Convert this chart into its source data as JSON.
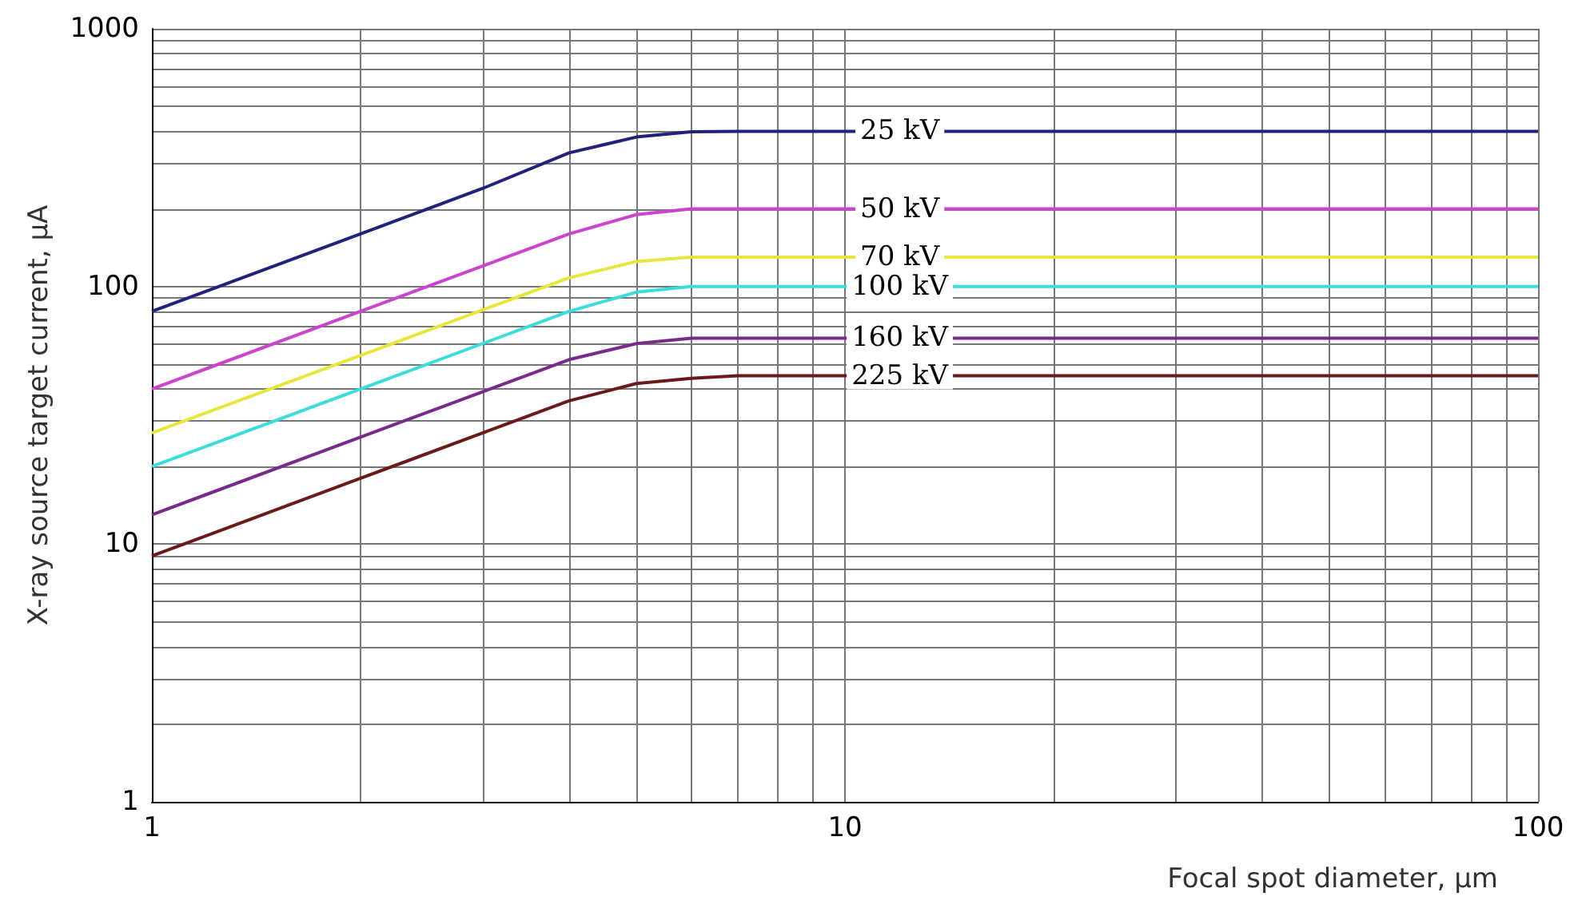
{
  "chart_data": {
    "type": "line",
    "xlabel": "Focal spot diameter, μm",
    "ylabel": "X-ray source target current, μA",
    "x": [
      1,
      2,
      3,
      4,
      5,
      6,
      7,
      100
    ],
    "series": [
      {
        "name": "25 kV",
        "color": "#22227a",
        "values": [
          80,
          160,
          240,
          330,
          380,
          398,
          400,
          400
        ]
      },
      {
        "name": "50 kV",
        "color": "#cc44cc",
        "values": [
          40,
          80,
          120,
          160,
          190,
          200,
          200,
          200
        ]
      },
      {
        "name": "70 kV",
        "color": "#e6e63c",
        "values": [
          27,
          54,
          81,
          108,
          125,
          130,
          130,
          130
        ]
      },
      {
        "name": "100 kV",
        "color": "#3cdcdc",
        "values": [
          20,
          40,
          60,
          80,
          95,
          100,
          100,
          100
        ]
      },
      {
        "name": "160 kV",
        "color": "#7a2a8a",
        "values": [
          13,
          26,
          39,
          52,
          60,
          63,
          63,
          63
        ]
      },
      {
        "name": "225 kV",
        "color": "#6b1a1a",
        "values": [
          9,
          18,
          27,
          36,
          42,
          44,
          45,
          45
        ]
      }
    ],
    "xlim": [
      1,
      100
    ],
    "ylim": [
      1,
      1000
    ],
    "xticks": [
      1,
      10,
      100
    ],
    "yticks": [
      1,
      10,
      100,
      1000
    ],
    "log": "xy",
    "grid": true,
    "marker": "none",
    "line_style": "solid"
  }
}
